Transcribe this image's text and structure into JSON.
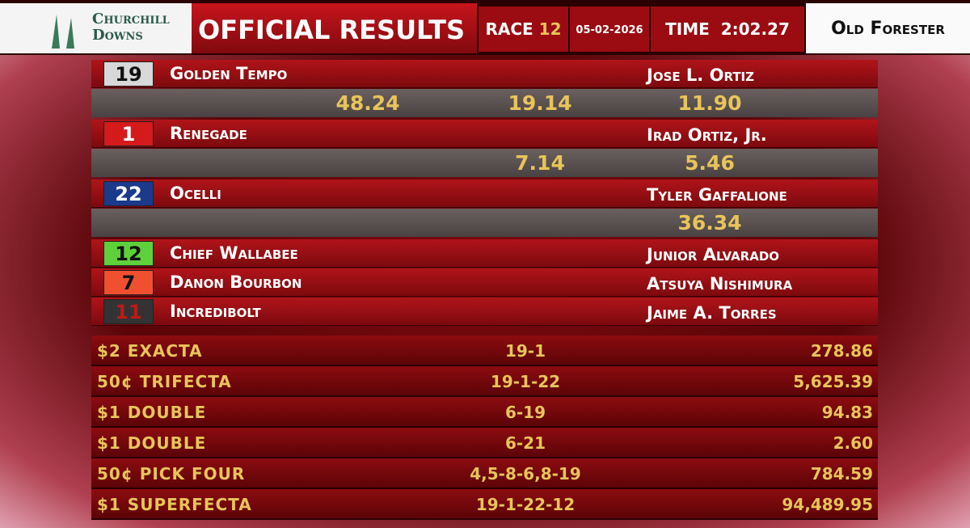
{
  "header": {
    "brand": [
      "Churchill",
      "Downs"
    ],
    "title": "OFFICIAL RESULTS",
    "race_label": "RACE",
    "race_number": "12",
    "date": "05-02-2026",
    "time_label": "TIME",
    "time": "2:02.27",
    "sponsor": "Old Forester"
  },
  "finishers": [
    {
      "number": "19",
      "horse": "Golden Tempo",
      "jockey": "Jose L. Ortiz",
      "payouts": {
        "win": "48.24",
        "place": "19.14",
        "show": "11.90"
      }
    },
    {
      "number": "1",
      "horse": "Renegade",
      "jockey": "Irad Ortiz, Jr.",
      "payouts": {
        "place": "7.14",
        "show": "5.46"
      }
    },
    {
      "number": "22",
      "horse": "Ocelli",
      "jockey": "Tyler Gaffalione",
      "payouts": {
        "show": "36.34"
      }
    },
    {
      "number": "12",
      "horse": "Chief Wallabee",
      "jockey": "Junior Alvarado"
    },
    {
      "number": "7",
      "horse": "Danon Bourbon",
      "jockey": "Atsuya Nishimura"
    },
    {
      "number": "11",
      "horse": "Incredibolt",
      "jockey": "Jaime A. Torres"
    }
  ],
  "exotics": [
    {
      "bet": "$2 EXACTA",
      "combination": "19-1",
      "payout": "278.86"
    },
    {
      "bet": "50¢ TRIFECTA",
      "combination": "19-1-22",
      "payout": "5,625.39"
    },
    {
      "bet": "$1 DOUBLE",
      "combination": "6-19",
      "payout": "94.83"
    },
    {
      "bet": "$1 DOUBLE",
      "combination": "6-21",
      "payout": "2.60"
    },
    {
      "bet": "50¢ PICK FOUR",
      "combination": "4,5-8-6,8-19",
      "payout": "784.59"
    },
    {
      "bet": "$1 SUPERFECTA",
      "combination": "19-1-22-12",
      "payout": "94,489.95"
    }
  ]
}
